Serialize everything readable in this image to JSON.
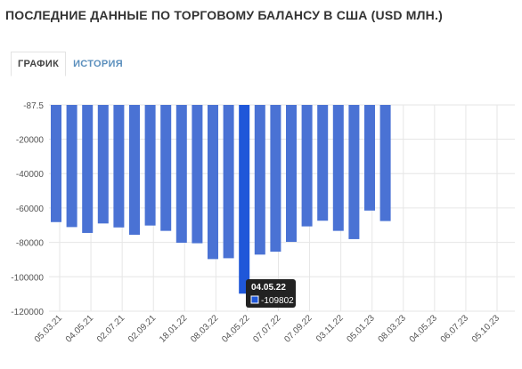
{
  "page": {
    "title": "ПОСЛЕДНИЕ ДАННЫЕ ПО ТОРГОВОМУ БАЛАНСУ В США (USD МЛН.)"
  },
  "tabs": [
    {
      "label": "ГРАФИК",
      "active": true
    },
    {
      "label": "ИСТОРИЯ",
      "active": false
    }
  ],
  "colors": {
    "bar": "#4a72d4",
    "bar_highlight": "#1f57d9",
    "grid": "#e6e6e6",
    "tooltip_bg": "#222222",
    "tab_inactive": "#5b8fbd"
  },
  "chart_data": {
    "type": "bar",
    "ylim": [
      -120000,
      -87.5
    ],
    "y_ticks": [
      -87.5,
      -20000,
      -40000,
      -60000,
      -80000,
      -100000,
      -120000
    ],
    "y_tick_labels": [
      "-87.5",
      "-20000",
      "-40000",
      "-60000",
      "-80000",
      "-100000",
      "-120000"
    ],
    "x_tick_labels": [
      "05.03.21",
      "04.05.21",
      "02.07.21",
      "02.09.21",
      "18.01.22",
      "08.03.22",
      "04.05.22",
      "07.07.22",
      "07.09.22",
      "03.11.22",
      "05.01.23",
      "08.03.23",
      "04.05.23",
      "06.07.23",
      "05.10.23"
    ],
    "values": [
      -68200,
      -71100,
      -74500,
      -69000,
      -71300,
      -75600,
      -70200,
      -73300,
      -80200,
      -80500,
      -89700,
      -89200,
      -109802,
      -87100,
      -85400,
      -79700,
      -70700,
      -67400,
      -73300,
      -78100,
      -61500,
      -67600
    ],
    "highlight_index": 12,
    "grid": true,
    "tooltip": {
      "date": "04.05.22",
      "value": "-109802"
    }
  }
}
